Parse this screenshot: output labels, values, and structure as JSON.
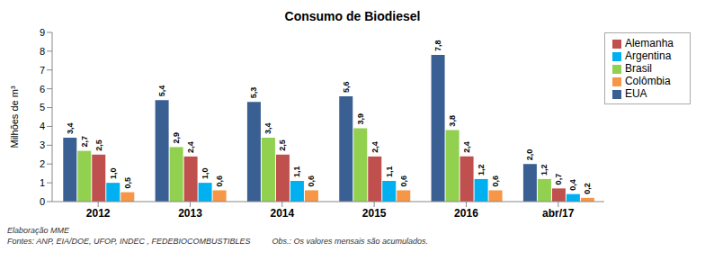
{
  "chart_data": {
    "type": "bar",
    "title": "Consumo de Biodiesel",
    "y_label": "Milhões de m³",
    "categories": [
      "2012",
      "2013",
      "2014",
      "2015",
      "2016",
      "abr/17"
    ],
    "series": [
      {
        "name": "EUA",
        "color": "#3A5F93",
        "values": [
          3.4,
          5.4,
          5.3,
          5.6,
          7.8,
          2.0
        ],
        "value_labels": [
          "3,4",
          "5,4",
          "5,3",
          "5,6",
          "7,8",
          "2,0"
        ]
      },
      {
        "name": "Brasil",
        "color": "#92D050",
        "values": [
          2.7,
          2.9,
          3.4,
          3.9,
          3.8,
          1.2
        ],
        "value_labels": [
          "2,7",
          "2,9",
          "3,4",
          "3,9",
          "3,8",
          "1,2"
        ]
      },
      {
        "name": "Alemanha",
        "color": "#C0504D",
        "values": [
          2.5,
          2.4,
          2.5,
          2.4,
          2.4,
          0.7
        ],
        "value_labels": [
          "2,5",
          "2,4",
          "2,5",
          "2,4",
          "2,4",
          "0,7"
        ]
      },
      {
        "name": "Argentina",
        "color": "#00B0F0",
        "values": [
          1.0,
          1.0,
          1.1,
          1.1,
          1.2,
          0.4
        ],
        "value_labels": [
          "1,0",
          "1,0",
          "1,1",
          "1,1",
          "1,2",
          "0,4"
        ]
      },
      {
        "name": "Colômbia",
        "color": "#F79646",
        "values": [
          0.5,
          0.6,
          0.6,
          0.6,
          0.6,
          0.2
        ],
        "value_labels": [
          "0,5",
          "0,6",
          "0,6",
          "0,6",
          "0,6",
          "0,2"
        ]
      }
    ],
    "ylim": [
      0,
      9
    ],
    "yticks": [
      0,
      1,
      2,
      3,
      4,
      5,
      6,
      7,
      8,
      9
    ],
    "grid": false,
    "legend": "top-right",
    "data_labels": true,
    "annotations": [
      "Elaboração  MME",
      "Fontes: ANP, EIA/DOE, UFOP, INDEC , FEDEBIOCOMBUSTIBLES",
      "Obs.: Os valores mensais são acumulados."
    ]
  }
}
